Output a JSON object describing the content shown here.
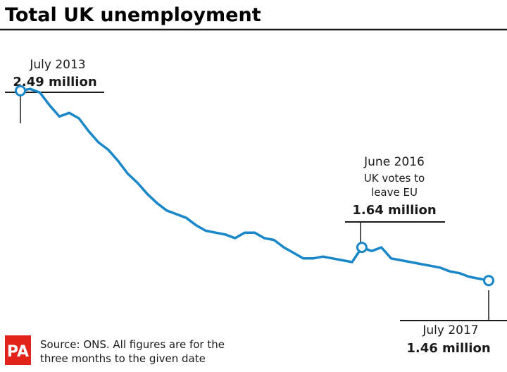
{
  "title": "Total UK unemployment",
  "source": {
    "logo_text": "PA",
    "line1": "Source: ONS. All figures are for the",
    "line2": "three months to the given date"
  },
  "colors": {
    "line": "#1a87c8",
    "text": "#1a1a1a",
    "logo_bg": "#e2231a",
    "rule": "#1a1a1a"
  },
  "annotations": {
    "start": {
      "date": "July 2013",
      "value": "2.49 million"
    },
    "mid": {
      "date": "June 2016",
      "note1": "UK votes to",
      "note2": "leave EU",
      "value": "1.64 million"
    },
    "end": {
      "date": "July 2017",
      "value": "1.46 million"
    }
  },
  "chart_data": {
    "type": "line",
    "title": "Total UK unemployment",
    "x": [
      "2013-07",
      "2013-08",
      "2013-09",
      "2013-10",
      "2013-11",
      "2013-12",
      "2014-01",
      "2014-02",
      "2014-03",
      "2014-04",
      "2014-05",
      "2014-06",
      "2014-07",
      "2014-08",
      "2014-09",
      "2014-10",
      "2014-11",
      "2014-12",
      "2015-01",
      "2015-02",
      "2015-03",
      "2015-04",
      "2015-05",
      "2015-06",
      "2015-07",
      "2015-08",
      "2015-09",
      "2015-10",
      "2015-11",
      "2015-12",
      "2016-01",
      "2016-02",
      "2016-03",
      "2016-04",
      "2016-05",
      "2016-06",
      "2016-07",
      "2016-08",
      "2016-09",
      "2016-10",
      "2016-11",
      "2016-12",
      "2017-01",
      "2017-02",
      "2017-03",
      "2017-04",
      "2017-05",
      "2017-06",
      "2017-07"
    ],
    "series": [
      {
        "values": [
          2.49,
          2.5,
          2.48,
          2.41,
          2.35,
          2.37,
          2.34,
          2.27,
          2.21,
          2.17,
          2.11,
          2.04,
          1.99,
          1.93,
          1.88,
          1.84,
          1.82,
          1.8,
          1.76,
          1.73,
          1.72,
          1.71,
          1.69,
          1.72,
          1.72,
          1.69,
          1.68,
          1.64,
          1.61,
          1.58,
          1.58,
          1.59,
          1.58,
          1.57,
          1.56,
          1.64,
          1.62,
          1.64,
          1.58,
          1.57,
          1.56,
          1.55,
          1.54,
          1.53,
          1.51,
          1.5,
          1.48,
          1.47,
          1.46
        ]
      }
    ],
    "highlights": [
      {
        "x": "2013-07",
        "y": 2.49
      },
      {
        "x": "2016-06",
        "y": 1.64
      },
      {
        "x": "2017-07",
        "y": 1.46
      }
    ],
    "ylim": [
      1.3,
      2.6
    ],
    "grid": false,
    "legend": "none"
  }
}
